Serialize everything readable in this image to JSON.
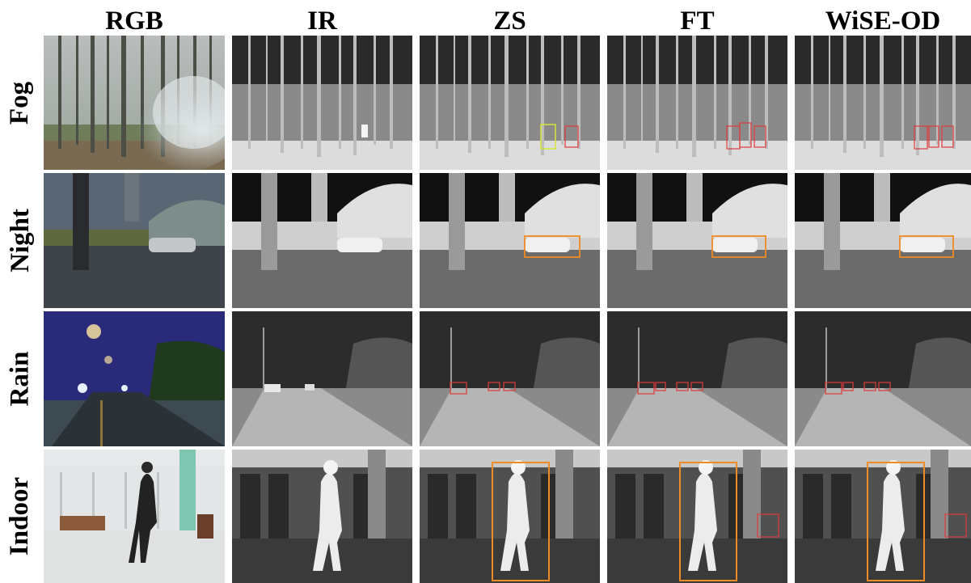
{
  "columns": [
    {
      "id": "rgb",
      "label": "RGB"
    },
    {
      "id": "ir",
      "label": "IR"
    },
    {
      "id": "zs",
      "label": "ZS"
    },
    {
      "id": "ft",
      "label": "FT"
    },
    {
      "id": "wise",
      "label": "WiSE-OD"
    }
  ],
  "rows": [
    {
      "id": "fog",
      "label": "Fog"
    },
    {
      "id": "night",
      "label": "Night"
    },
    {
      "id": "rain",
      "label": "Rain"
    },
    {
      "id": "indoor",
      "label": "Indoor"
    }
  ],
  "colors": {
    "detection_box_red": "#e23a3a",
    "detection_box_yellow": "#d4e63a",
    "detection_box_orange": "#f08a24",
    "background": "#ffffff"
  },
  "detections": {
    "fog": {
      "zs": [
        {
          "color": "yellow"
        },
        {
          "color": "red"
        }
      ],
      "ft": [
        {
          "color": "red"
        },
        {
          "color": "red"
        },
        {
          "color": "red"
        }
      ],
      "wise": [
        {
          "color": "red"
        },
        {
          "color": "red"
        },
        {
          "color": "red"
        }
      ]
    },
    "night": {
      "zs": [
        {
          "color": "orange"
        }
      ],
      "ft": [
        {
          "color": "orange"
        }
      ],
      "wise": [
        {
          "color": "orange"
        }
      ]
    },
    "rain": {
      "zs": [
        {
          "color": "red"
        },
        {
          "color": "red"
        },
        {
          "color": "red"
        }
      ],
      "ft": [
        {
          "color": "red"
        },
        {
          "color": "red"
        },
        {
          "color": "red"
        },
        {
          "color": "red"
        }
      ],
      "wise": [
        {
          "color": "red"
        },
        {
          "color": "red"
        },
        {
          "color": "red"
        },
        {
          "color": "red"
        }
      ]
    },
    "indoor": {
      "zs": [
        {
          "color": "orange"
        }
      ],
      "ft": [
        {
          "color": "orange"
        },
        {
          "color": "red"
        }
      ],
      "wise": [
        {
          "color": "orange"
        },
        {
          "color": "red"
        }
      ]
    }
  }
}
